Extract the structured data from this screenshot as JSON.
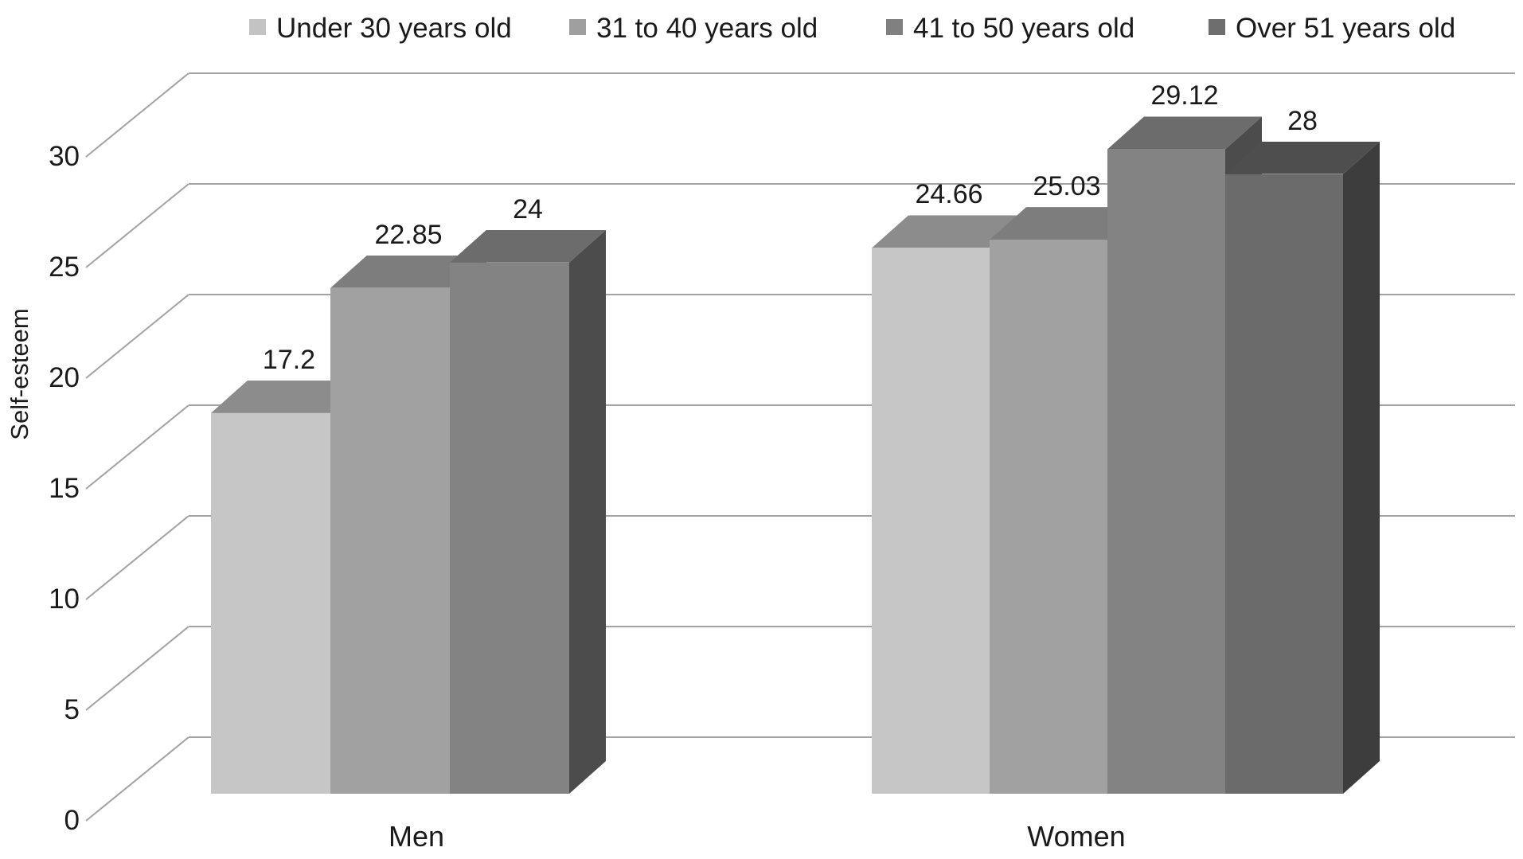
{
  "y_axis": {
    "title": "Self-esteem",
    "ticks": [
      "30",
      "25",
      "20",
      "15",
      "10",
      "5",
      "0"
    ],
    "tick_values": [
      30,
      25,
      20,
      15,
      10,
      5,
      0
    ]
  },
  "x_axis": {
    "categories": [
      "Men",
      "Women"
    ]
  },
  "legend": {
    "position": "top",
    "items": [
      {
        "label": "Under 30 years old",
        "swatch_color": "#c3c3c3"
      },
      {
        "label": "31 to 40 years old",
        "swatch_color": "#9f9f9f"
      },
      {
        "label": "41 to 50 years old",
        "swatch_color": "#808080"
      },
      {
        "label": "Over 51 years old",
        "swatch_color": "#6e6e6e"
      }
    ]
  },
  "chart_data": {
    "type": "bar",
    "projection": "3d",
    "title": "",
    "xlabel": "",
    "ylabel": "Self-esteem",
    "ylim": [
      0,
      30
    ],
    "ytick_step": 5,
    "grid": true,
    "legend_position": "top",
    "categories": [
      "Men",
      "Women"
    ],
    "series": [
      {
        "name": "Under 30 years old",
        "values": [
          17.2,
          24.66
        ]
      },
      {
        "name": "31 to 40 years old",
        "values": [
          22.85,
          25.03
        ]
      },
      {
        "name": "41 to 50 years old",
        "values": [
          24,
          29.12
        ]
      },
      {
        "name": "Over 51 years old",
        "values": [
          null,
          28
        ]
      }
    ],
    "data_labels": [
      [
        "17.2",
        "22.85",
        "24",
        null
      ],
      [
        "24.66",
        "25.03",
        "29.12",
        "28"
      ]
    ]
  },
  "colors": {
    "background": "#ffffff",
    "text": "#1a1a1a",
    "grid": "#a3a3a3",
    "series_front": [
      "#c6c6c6",
      "#a1a1a1",
      "#838383",
      "#6b6b6b"
    ],
    "series_top": [
      "#8c8c8c",
      "#7d7d7d",
      "#6c6c6c",
      "#4e4e4e"
    ],
    "series_side": [
      "#8a8a8a",
      "#6f6f6f",
      "#4c4c4c",
      "#3d3d3d"
    ]
  }
}
